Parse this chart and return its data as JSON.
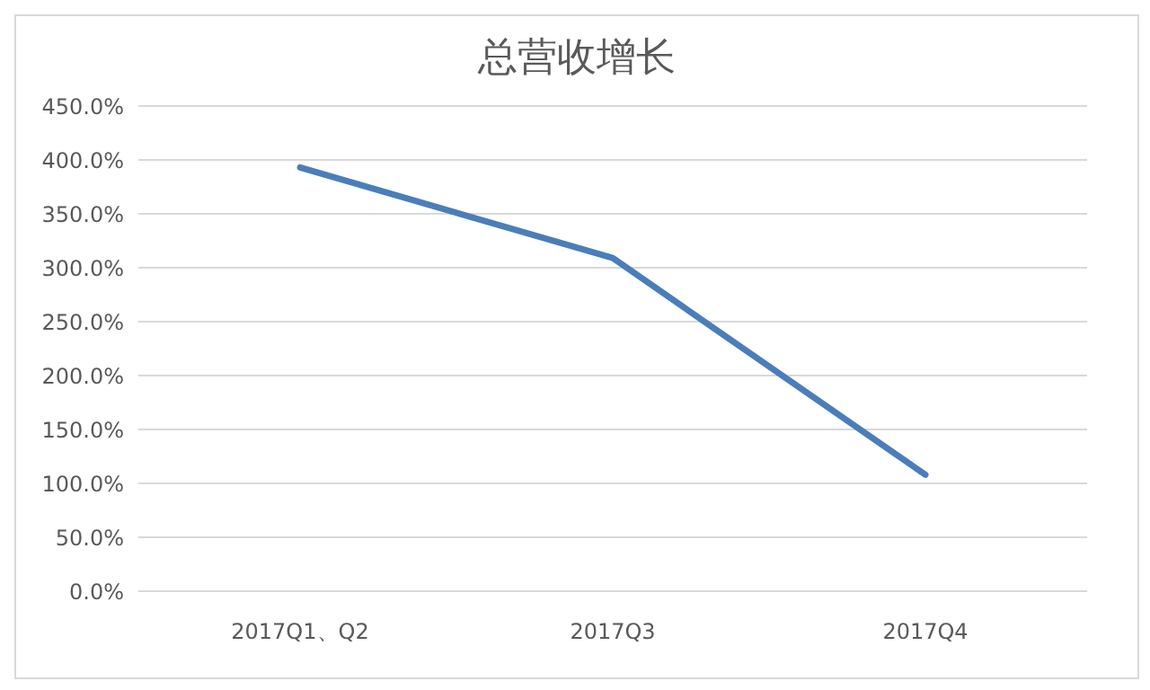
{
  "chart_data": {
    "type": "line",
    "title": "总营收增长",
    "categories": [
      "2017Q1、Q2",
      "2017Q3",
      "2017Q4"
    ],
    "series": [
      {
        "color": "#4a7ebb",
        "values": [
          393,
          309,
          108
        ]
      }
    ],
    "ylim": [
      0,
      450
    ],
    "yticks": [
      {
        "value": 0,
        "label": "0.0%"
      },
      {
        "value": 50,
        "label": "50.0%"
      },
      {
        "value": 100,
        "label": "100.0%"
      },
      {
        "value": 150,
        "label": "150.0%"
      },
      {
        "value": 200,
        "label": "200.0%"
      },
      {
        "value": 250,
        "label": "250.0%"
      },
      {
        "value": 300,
        "label": "300.0%"
      },
      {
        "value": 350,
        "label": "350.0%"
      },
      {
        "value": 400,
        "label": "400.0%"
      },
      {
        "value": 450,
        "label": "450.0%"
      }
    ],
    "grid": "y",
    "marker": "none",
    "line_style": "solid",
    "legend": false
  }
}
